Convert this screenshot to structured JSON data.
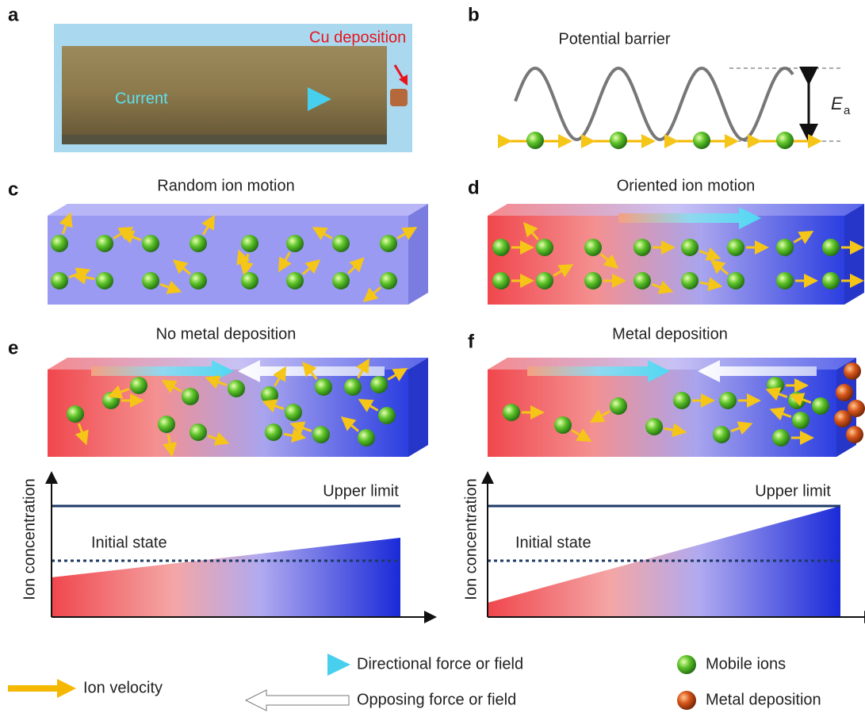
{
  "panels": {
    "a": {
      "letter": "a",
      "annotation": "Cu deposition",
      "arrow_label": "Current"
    },
    "b": {
      "letter": "b",
      "title": "Potential barrier",
      "symbol": "E",
      "subscript": "a"
    },
    "c": {
      "letter": "c",
      "title": "Random ion motion"
    },
    "d": {
      "letter": "d",
      "title": "Oriented ion motion"
    },
    "e": {
      "letter": "e",
      "title": "No metal deposition",
      "y_axis": "Ion concentration",
      "upper": "Upper limit",
      "initial": "Initial state"
    },
    "f": {
      "letter": "f",
      "title": "Metal deposition",
      "y_axis": "Ion concentration",
      "upper": "Upper limit",
      "initial": "Initial state"
    }
  },
  "legend": [
    "Ion velocity",
    "Directional force or field",
    "Opposing force or field",
    "Mobile ions",
    "Metal deposition"
  ]
}
